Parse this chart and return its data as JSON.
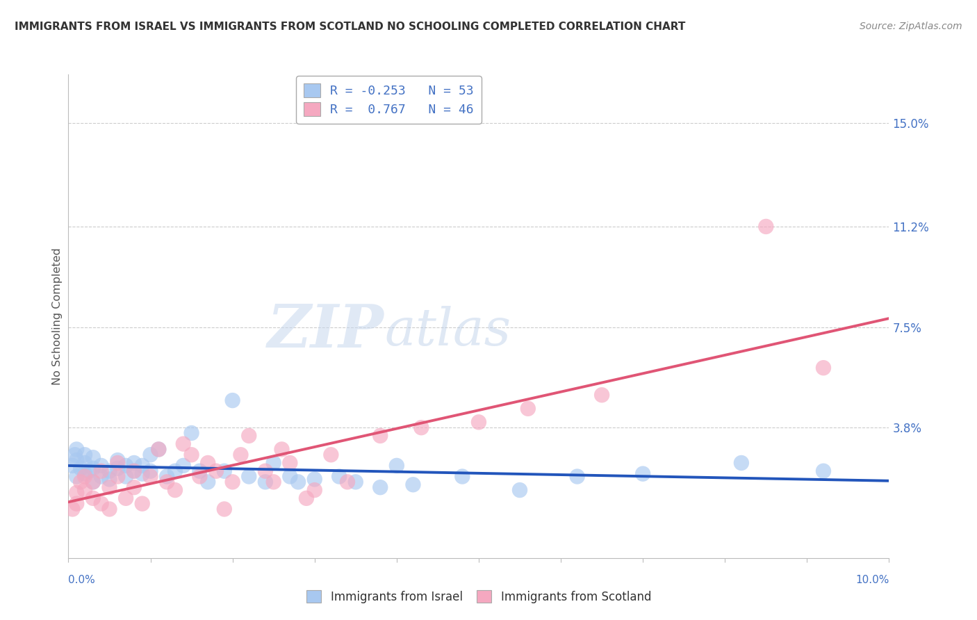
{
  "title": "IMMIGRANTS FROM ISRAEL VS IMMIGRANTS FROM SCOTLAND NO SCHOOLING COMPLETED CORRELATION CHART",
  "source": "Source: ZipAtlas.com",
  "ylabel": "No Schooling Completed",
  "color_israel": "#a8c8f0",
  "color_scotland": "#f5a8c0",
  "color_israel_line": "#2255bb",
  "color_scotland_line": "#e05575",
  "color_text_blue": "#4472c4",
  "ytick_labels": [
    "15.0%",
    "11.2%",
    "7.5%",
    "3.8%"
  ],
  "ytick_values": [
    0.15,
    0.112,
    0.075,
    0.038
  ],
  "xlim": [
    0.0,
    0.1
  ],
  "ylim": [
    -0.01,
    0.168
  ],
  "r_israel": -0.253,
  "n_israel": 53,
  "r_scotland": 0.767,
  "n_scotland": 46,
  "israel_x": [
    0.0005,
    0.0008,
    0.001,
    0.001,
    0.001,
    0.0015,
    0.002,
    0.002,
    0.002,
    0.0025,
    0.003,
    0.003,
    0.003,
    0.004,
    0.004,
    0.005,
    0.005,
    0.006,
    0.006,
    0.007,
    0.007,
    0.008,
    0.008,
    0.009,
    0.009,
    0.01,
    0.01,
    0.011,
    0.012,
    0.013,
    0.014,
    0.015,
    0.016,
    0.017,
    0.019,
    0.02,
    0.022,
    0.024,
    0.025,
    0.027,
    0.028,
    0.03,
    0.033,
    0.035,
    0.038,
    0.04,
    0.042,
    0.048,
    0.055,
    0.062,
    0.07,
    0.082,
    0.092
  ],
  "israel_y": [
    0.024,
    0.028,
    0.02,
    0.026,
    0.03,
    0.023,
    0.021,
    0.025,
    0.028,
    0.022,
    0.018,
    0.023,
    0.027,
    0.02,
    0.024,
    0.019,
    0.022,
    0.023,
    0.026,
    0.02,
    0.024,
    0.022,
    0.025,
    0.021,
    0.024,
    0.028,
    0.022,
    0.03,
    0.02,
    0.022,
    0.024,
    0.036,
    0.022,
    0.018,
    0.022,
    0.048,
    0.02,
    0.018,
    0.025,
    0.02,
    0.018,
    0.019,
    0.02,
    0.018,
    0.016,
    0.024,
    0.017,
    0.02,
    0.015,
    0.02,
    0.021,
    0.025,
    0.022
  ],
  "scotland_x": [
    0.0005,
    0.001,
    0.001,
    0.0015,
    0.002,
    0.002,
    0.003,
    0.003,
    0.004,
    0.004,
    0.005,
    0.005,
    0.006,
    0.006,
    0.007,
    0.008,
    0.008,
    0.009,
    0.01,
    0.011,
    0.012,
    0.013,
    0.014,
    0.015,
    0.016,
    0.017,
    0.018,
    0.019,
    0.02,
    0.021,
    0.022,
    0.024,
    0.025,
    0.026,
    0.027,
    0.029,
    0.03,
    0.032,
    0.034,
    0.038,
    0.043,
    0.05,
    0.056,
    0.065,
    0.085,
    0.092
  ],
  "scotland_y": [
    0.008,
    0.01,
    0.014,
    0.018,
    0.015,
    0.02,
    0.012,
    0.018,
    0.01,
    0.022,
    0.008,
    0.016,
    0.02,
    0.025,
    0.012,
    0.016,
    0.022,
    0.01,
    0.02,
    0.03,
    0.018,
    0.015,
    0.032,
    0.028,
    0.02,
    0.025,
    0.022,
    0.008,
    0.018,
    0.028,
    0.035,
    0.022,
    0.018,
    0.03,
    0.025,
    0.012,
    0.015,
    0.028,
    0.018,
    0.035,
    0.038,
    0.04,
    0.045,
    0.05,
    0.112,
    0.06
  ],
  "watermark_zip": "ZIP",
  "watermark_atlas": "atlas"
}
